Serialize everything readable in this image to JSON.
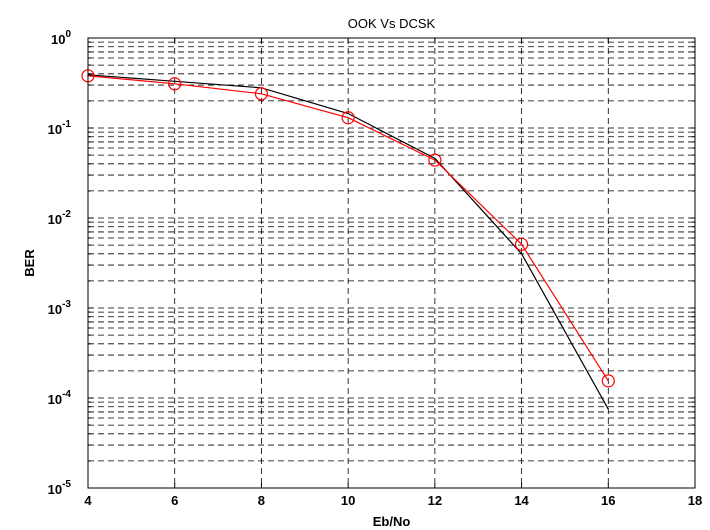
{
  "chart_data": {
    "type": "line",
    "title": "OOK Vs DCSK",
    "xlabel": "Eb/No",
    "ylabel": "BER",
    "xlim": [
      4,
      18
    ],
    "ylim": [
      1e-05,
      1
    ],
    "yscale": "log",
    "grid": true,
    "xticks": [
      "4",
      "6",
      "8",
      "10",
      "12",
      "14",
      "16",
      "18"
    ],
    "yticks": [
      {
        "base": "10",
        "exp": "-5",
        "value": 1e-05
      },
      {
        "base": "10",
        "exp": "-4",
        "value": 0.0001
      },
      {
        "base": "10",
        "exp": "-3",
        "value": 0.001
      },
      {
        "base": "10",
        "exp": "-2",
        "value": 0.01
      },
      {
        "base": "10",
        "exp": "-1",
        "value": 0.1
      },
      {
        "base": "10",
        "exp": "0",
        "value": 1
      }
    ],
    "x": [
      4,
      6,
      8,
      10,
      12,
      14,
      16
    ],
    "series": [
      {
        "values": [
          0.39,
          0.33,
          0.28,
          0.145,
          0.046,
          0.004,
          7.5e-05
        ],
        "color": "#000000",
        "marker": "none"
      },
      {
        "values": [
          0.38,
          0.31,
          0.24,
          0.13,
          0.044,
          0.0051,
          0.000155
        ],
        "color": "#ff0000",
        "marker": "circle"
      }
    ]
  }
}
